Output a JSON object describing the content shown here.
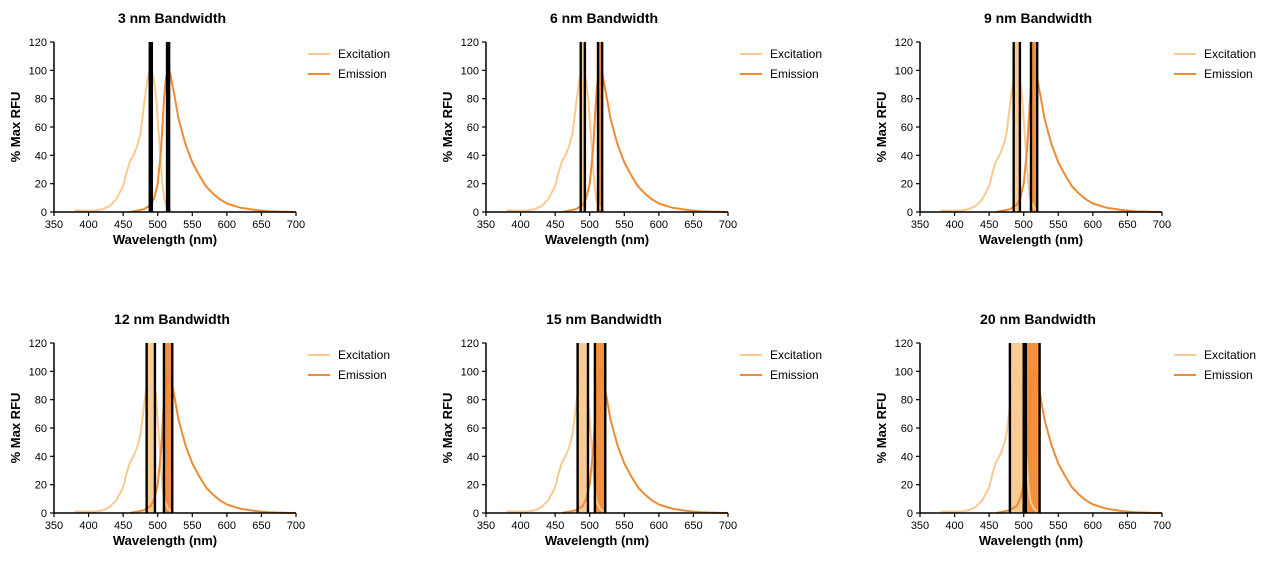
{
  "figure": {
    "x_label": "Wavelength (nm)",
    "y_label": "% Max RFU",
    "legend": [
      "Excitation",
      "Emission"
    ]
  },
  "colors": {
    "excitation": "#f9c98e",
    "emission": "#f08a33",
    "lines": "#000000"
  },
  "chart_data": [
    {
      "type": "line",
      "title": "3 nm Bandwidth",
      "bandwidth_nm": 3,
      "xlabel": "Wavelength (nm)",
      "ylabel": "% Max RFU",
      "xlim": [
        350,
        700
      ],
      "ylim": [
        0,
        120
      ],
      "xticks": [
        350,
        400,
        450,
        500,
        550,
        600,
        650,
        700
      ],
      "yticks": [
        0,
        20,
        40,
        60,
        80,
        100,
        120
      ],
      "legend_position": "right",
      "excitation_center": 490,
      "emission_center": 515,
      "series": [
        {
          "name": "Excitation",
          "x": [
            380,
            400,
            410,
            420,
            430,
            440,
            450,
            455,
            460,
            465,
            470,
            475,
            480,
            485,
            488,
            490,
            492,
            495,
            498,
            500,
            503,
            505,
            508,
            510,
            515,
            520
          ],
          "y": [
            1,
            1,
            1,
            2,
            4,
            9,
            18,
            28,
            36,
            40,
            46,
            55,
            75,
            93,
            99,
            100,
            98,
            92,
            80,
            65,
            45,
            30,
            15,
            8,
            3,
            1
          ]
        },
        {
          "name": "Emission",
          "x": [
            460,
            470,
            480,
            490,
            495,
            500,
            505,
            508,
            510,
            512,
            515,
            518,
            520,
            525,
            530,
            540,
            550,
            560,
            570,
            580,
            590,
            600,
            620,
            640,
            660,
            680,
            700
          ],
          "y": [
            0,
            1,
            2,
            5,
            10,
            20,
            45,
            70,
            85,
            95,
            100,
            98,
            93,
            80,
            66,
            48,
            35,
            26,
            18,
            13,
            9,
            6,
            3,
            1.5,
            0.5,
            0.2,
            0
          ]
        }
      ]
    },
    {
      "type": "line",
      "title": "6 nm Bandwidth",
      "bandwidth_nm": 6,
      "xlabel": "Wavelength (nm)",
      "ylabel": "% Max RFU",
      "xlim": [
        350,
        700
      ],
      "ylim": [
        0,
        120
      ],
      "xticks": [
        350,
        400,
        450,
        500,
        550,
        600,
        650,
        700
      ],
      "yticks": [
        0,
        20,
        40,
        60,
        80,
        100,
        120
      ],
      "legend_position": "right",
      "excitation_center": 490,
      "emission_center": 515,
      "series": [
        {
          "name": "Excitation",
          "x": [
            380,
            400,
            410,
            420,
            430,
            440,
            450,
            455,
            460,
            465,
            470,
            475,
            480,
            485,
            488,
            490,
            492,
            495,
            498,
            500,
            503,
            505,
            508,
            510,
            515,
            520
          ],
          "y": [
            1,
            1,
            1,
            2,
            4,
            9,
            18,
            28,
            36,
            40,
            46,
            55,
            75,
            93,
            99,
            100,
            98,
            92,
            80,
            65,
            45,
            30,
            15,
            8,
            3,
            1
          ]
        },
        {
          "name": "Emission",
          "x": [
            460,
            470,
            480,
            490,
            495,
            500,
            505,
            508,
            510,
            512,
            515,
            518,
            520,
            525,
            530,
            540,
            550,
            560,
            570,
            580,
            590,
            600,
            620,
            640,
            660,
            680,
            700
          ],
          "y": [
            0,
            1,
            2,
            5,
            10,
            20,
            45,
            70,
            85,
            95,
            100,
            98,
            93,
            80,
            66,
            48,
            35,
            26,
            18,
            13,
            9,
            6,
            3,
            1.5,
            0.5,
            0.2,
            0
          ]
        }
      ]
    },
    {
      "type": "line",
      "title": "9 nm Bandwidth",
      "bandwidth_nm": 9,
      "xlabel": "Wavelength (nm)",
      "ylabel": "% Max RFU",
      "xlim": [
        350,
        700
      ],
      "ylim": [
        0,
        120
      ],
      "xticks": [
        350,
        400,
        450,
        500,
        550,
        600,
        650,
        700
      ],
      "yticks": [
        0,
        20,
        40,
        60,
        80,
        100,
        120
      ],
      "legend_position": "right",
      "excitation_center": 490,
      "emission_center": 515,
      "series": [
        {
          "name": "Excitation",
          "x": [
            380,
            400,
            410,
            420,
            430,
            440,
            450,
            455,
            460,
            465,
            470,
            475,
            480,
            485,
            488,
            490,
            492,
            495,
            498,
            500,
            503,
            505,
            508,
            510,
            515,
            520
          ],
          "y": [
            1,
            1,
            1,
            2,
            4,
            9,
            18,
            28,
            36,
            40,
            46,
            55,
            75,
            93,
            99,
            100,
            98,
            92,
            80,
            65,
            45,
            30,
            15,
            8,
            3,
            1
          ]
        },
        {
          "name": "Emission",
          "x": [
            460,
            470,
            480,
            490,
            495,
            500,
            505,
            508,
            510,
            512,
            515,
            518,
            520,
            525,
            530,
            540,
            550,
            560,
            570,
            580,
            590,
            600,
            620,
            640,
            660,
            680,
            700
          ],
          "y": [
            0,
            1,
            2,
            5,
            10,
            20,
            45,
            70,
            85,
            95,
            100,
            98,
            93,
            80,
            66,
            48,
            35,
            26,
            18,
            13,
            9,
            6,
            3,
            1.5,
            0.5,
            0.2,
            0
          ]
        }
      ]
    },
    {
      "type": "line",
      "title": "12 nm Bandwidth",
      "bandwidth_nm": 12,
      "xlabel": "Wavelength (nm)",
      "ylabel": "% Max RFU",
      "xlim": [
        350,
        700
      ],
      "ylim": [
        0,
        120
      ],
      "xticks": [
        350,
        400,
        450,
        500,
        550,
        600,
        650,
        700
      ],
      "yticks": [
        0,
        20,
        40,
        60,
        80,
        100,
        120
      ],
      "legend_position": "right",
      "excitation_center": 490,
      "emission_center": 515,
      "series": [
        {
          "name": "Excitation",
          "x": [
            380,
            400,
            410,
            420,
            430,
            440,
            450,
            455,
            460,
            465,
            470,
            475,
            480,
            485,
            488,
            490,
            492,
            495,
            498,
            500,
            503,
            505,
            508,
            510,
            515,
            520
          ],
          "y": [
            1,
            1,
            1,
            2,
            4,
            9,
            18,
            28,
            36,
            40,
            46,
            55,
            75,
            93,
            99,
            100,
            98,
            92,
            80,
            65,
            45,
            30,
            15,
            8,
            3,
            1
          ]
        },
        {
          "name": "Emission",
          "x": [
            460,
            470,
            480,
            490,
            495,
            500,
            505,
            508,
            510,
            512,
            515,
            518,
            520,
            525,
            530,
            540,
            550,
            560,
            570,
            580,
            590,
            600,
            620,
            640,
            660,
            680,
            700
          ],
          "y": [
            0,
            1,
            2,
            5,
            10,
            20,
            45,
            70,
            85,
            95,
            100,
            98,
            93,
            80,
            66,
            48,
            35,
            26,
            18,
            13,
            9,
            6,
            3,
            1.5,
            0.5,
            0.2,
            0
          ]
        }
      ]
    },
    {
      "type": "line",
      "title": "15 nm Bandwidth",
      "bandwidth_nm": 15,
      "xlabel": "Wavelength (nm)",
      "ylabel": "% Max RFU",
      "xlim": [
        350,
        700
      ],
      "ylim": [
        0,
        120
      ],
      "xticks": [
        350,
        400,
        450,
        500,
        550,
        600,
        650,
        700
      ],
      "yticks": [
        0,
        20,
        40,
        60,
        80,
        100,
        120
      ],
      "legend_position": "right",
      "excitation_center": 490,
      "emission_center": 515,
      "series": [
        {
          "name": "Excitation",
          "x": [
            380,
            400,
            410,
            420,
            430,
            440,
            450,
            455,
            460,
            465,
            470,
            475,
            480,
            485,
            488,
            490,
            492,
            495,
            498,
            500,
            503,
            505,
            508,
            510,
            515,
            520
          ],
          "y": [
            1,
            1,
            1,
            2,
            4,
            9,
            18,
            28,
            36,
            40,
            46,
            55,
            75,
            93,
            99,
            100,
            98,
            92,
            80,
            65,
            45,
            30,
            15,
            8,
            3,
            1
          ]
        },
        {
          "name": "Emission",
          "x": [
            460,
            470,
            480,
            490,
            495,
            500,
            505,
            508,
            510,
            512,
            515,
            518,
            520,
            525,
            530,
            540,
            550,
            560,
            570,
            580,
            590,
            600,
            620,
            640,
            660,
            680,
            700
          ],
          "y": [
            0,
            1,
            2,
            5,
            10,
            20,
            45,
            70,
            85,
            95,
            100,
            98,
            93,
            80,
            66,
            48,
            35,
            26,
            18,
            13,
            9,
            6,
            3,
            1.5,
            0.5,
            0.2,
            0
          ]
        }
      ]
    },
    {
      "type": "line",
      "title": "20 nm Bandwidth",
      "bandwidth_nm": 20,
      "xlabel": "Wavelength (nm)",
      "ylabel": "% Max RFU",
      "xlim": [
        350,
        700
      ],
      "ylim": [
        0,
        120
      ],
      "xticks": [
        350,
        400,
        450,
        500,
        550,
        600,
        650,
        700
      ],
      "yticks": [
        0,
        20,
        40,
        60,
        80,
        100,
        120
      ],
      "legend_position": "right",
      "excitation_center": 490,
      "emission_center": 513,
      "series": [
        {
          "name": "Excitation",
          "x": [
            380,
            400,
            410,
            420,
            430,
            440,
            450,
            455,
            460,
            465,
            470,
            475,
            480,
            485,
            488,
            490,
            492,
            495,
            498,
            500,
            503,
            505,
            508,
            510,
            515,
            520
          ],
          "y": [
            1,
            1,
            1,
            2,
            4,
            9,
            18,
            28,
            36,
            40,
            46,
            55,
            75,
            93,
            99,
            100,
            98,
            92,
            80,
            65,
            45,
            30,
            15,
            8,
            3,
            1
          ]
        },
        {
          "name": "Emission",
          "x": [
            460,
            470,
            480,
            490,
            495,
            500,
            505,
            508,
            510,
            512,
            515,
            518,
            520,
            525,
            530,
            540,
            550,
            560,
            570,
            580,
            590,
            600,
            620,
            640,
            660,
            680,
            700
          ],
          "y": [
            0,
            1,
            2,
            5,
            10,
            20,
            45,
            70,
            85,
            95,
            100,
            98,
            93,
            80,
            66,
            48,
            35,
            26,
            18,
            13,
            9,
            6,
            3,
            1.5,
            0.5,
            0.2,
            0
          ]
        }
      ]
    }
  ]
}
